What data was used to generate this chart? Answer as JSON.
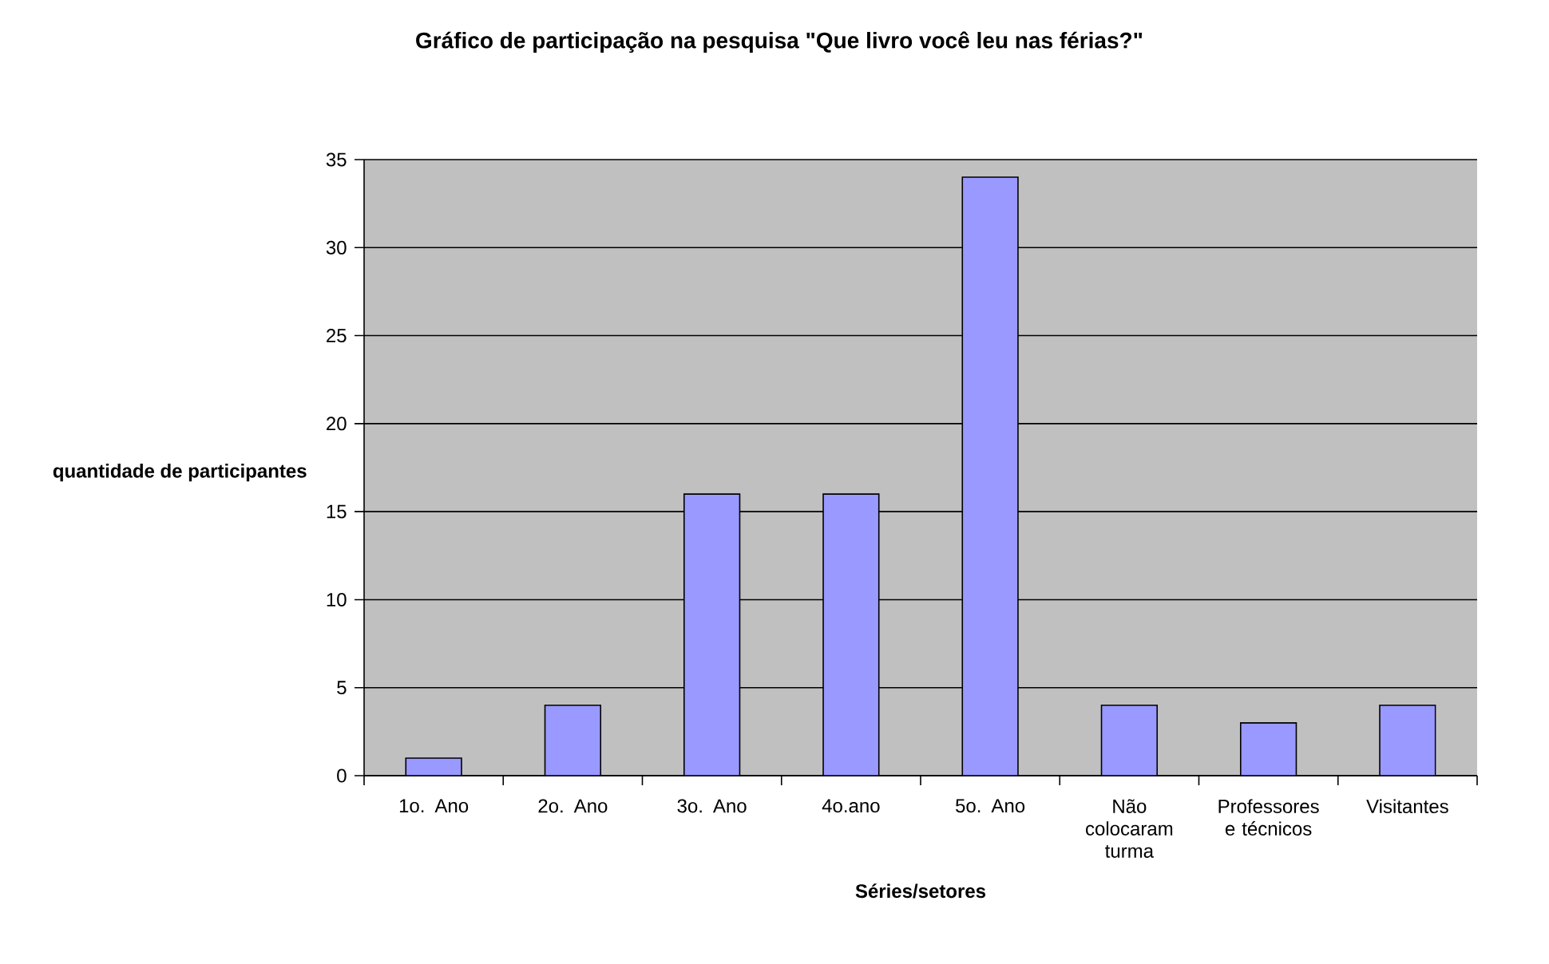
{
  "chart_data": {
    "type": "bar",
    "title": "Gráfico de participação na pesquisa \"Que livro você leu nas férias?\"",
    "xlabel": "Séries/setores",
    "ylabel": "quantidade de participantes",
    "categories": [
      "1o. Ano",
      "2o. Ano",
      "3o. Ano",
      "4o.ano",
      "5o. Ano",
      "Não colocaram turma",
      "Professores e técnicos",
      "Visitantes"
    ],
    "values": [
      1,
      4,
      16,
      16,
      34,
      4,
      3,
      4
    ],
    "color": "#9999ff",
    "ylim": [
      0,
      35
    ],
    "yticks": [
      0,
      5,
      10,
      15,
      20,
      25,
      30,
      35
    ],
    "grid": "y"
  }
}
